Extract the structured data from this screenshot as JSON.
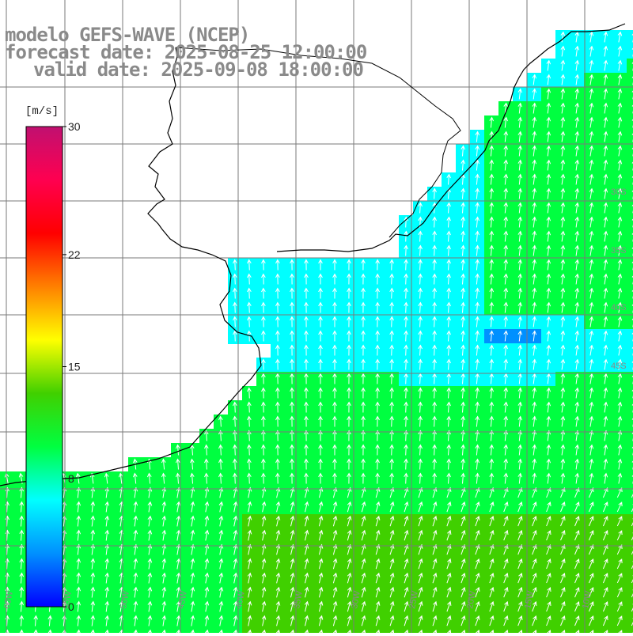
{
  "title": {
    "line1": "modelo GEFS-WAVE (NCEP)",
    "line2": "forecast date: 2025-08-25 12:00:00",
    "line3": "valid date: 2025-09-08 18:00:00"
  },
  "colorbar": {
    "unit": "[m/s]",
    "ticks": [
      "30",
      "22",
      "15",
      "8",
      "0"
    ],
    "tick_values": [
      30,
      22,
      15,
      8,
      0
    ],
    "range": [
      0,
      30
    ],
    "colors": [
      "#0000ff",
      "#0090ff",
      "#00ffff",
      "#00ff40",
      "#40d000",
      "#ffff00",
      "#ff8000",
      "#ff0000",
      "#ff0050",
      "#c01070"
    ]
  },
  "map": {
    "longitude_labels": [
      "60W",
      "55W",
      "50W",
      "45W",
      "40W",
      "35W",
      "30W",
      "25W",
      "20W",
      "15W",
      "10W"
    ],
    "latitude_labels": [
      "30S",
      "35S",
      "40S",
      "45S"
    ],
    "land_color": "#ffffff",
    "coastline_color": "#000000",
    "grid_color": "#7a7a7a"
  }
}
